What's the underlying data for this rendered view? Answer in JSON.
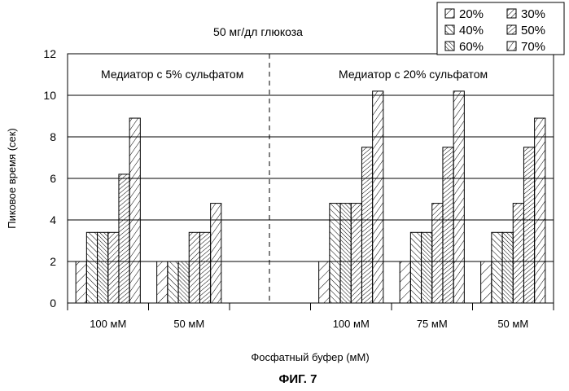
{
  "chart_data": {
    "type": "bar",
    "title": "50 мг/дл глюкоза",
    "xlabel": "Фосфатный буфер (мМ)",
    "ylabel": "Пиковое время (сек)",
    "ylim": [
      0,
      12
    ],
    "yticks": [
      "0",
      "2",
      "4",
      "6",
      "8",
      "10",
      "12"
    ],
    "grid": "horizontal",
    "groups": [
      {
        "label": "100 мМ",
        "values": [
          2.0,
          3.4,
          3.4,
          3.4,
          6.2,
          8.9
        ]
      },
      {
        "label": "50 мМ",
        "values": [
          2.0,
          2.0,
          2.0,
          3.4,
          3.4,
          4.8
        ]
      },
      {
        "label": "",
        "values": []
      },
      {
        "label": "100 мМ",
        "values": [
          2.0,
          4.8,
          4.8,
          4.8,
          7.5,
          10.2
        ]
      },
      {
        "label": "75 мМ",
        "values": [
          2.0,
          3.4,
          3.4,
          4.8,
          7.5,
          10.2
        ]
      },
      {
        "label": "50 мМ",
        "values": [
          2.0,
          3.4,
          3.4,
          4.8,
          7.5,
          8.9
        ]
      }
    ],
    "series": [
      {
        "name": "20%",
        "pattern": "diag-right-sparse"
      },
      {
        "name": "40%",
        "pattern": "diag-left"
      },
      {
        "name": "60%",
        "pattern": "diag-left-dense"
      },
      {
        "name": "30%",
        "pattern": "diag-right"
      },
      {
        "name": "50%",
        "pattern": "diag-right-medium"
      },
      {
        "name": "70%",
        "pattern": "diag-right-wide"
      }
    ],
    "legend": {
      "placement": "top-right",
      "rows": [
        [
          "20%",
          "30%"
        ],
        [
          "40%",
          "50%"
        ],
        [
          "60%",
          "70%"
        ]
      ]
    },
    "annotations": {
      "left": "Медиатор с  5% сульфатом",
      "right": "Медиатор с  20% сульфатом"
    },
    "divider": "dashed"
  },
  "figure_label": "ФИГ. 7"
}
